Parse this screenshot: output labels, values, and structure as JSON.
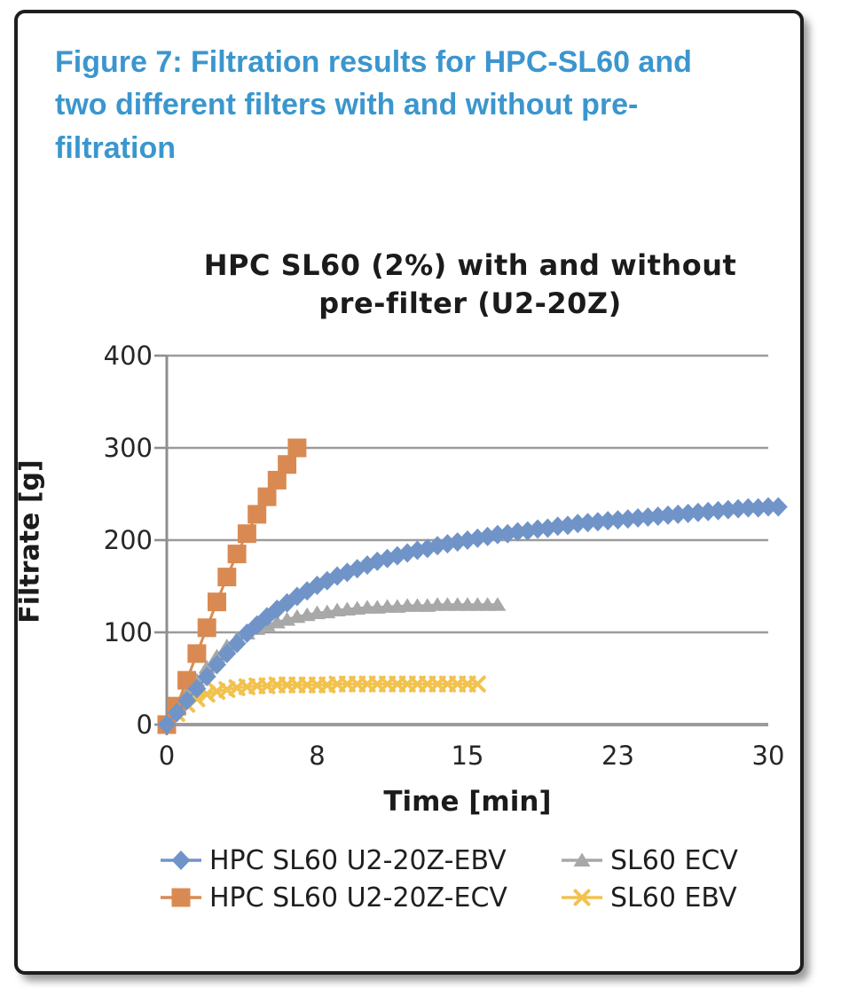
{
  "figure_caption": "Figure 7: Filtration results for HPC-SL60 and two different filters with and without pre-filtration",
  "colors": {
    "caption_blue": "#3b96ce",
    "grid_gray": "#9b9b9b",
    "axis_gray": "#8f8f8f",
    "text_dark": "#1b1b1b"
  },
  "chart_data": {
    "type": "scatter",
    "title": "HPC SL60 (2%) with and without pre-filter (U2-20Z)",
    "xlabel": "Time [min]",
    "ylabel": "Filtrate [g]",
    "xlim": [
      0,
      30
    ],
    "ylim": [
      0,
      400
    ],
    "xticks": {
      "positions": [
        0,
        7.5,
        15,
        22.5,
        30
      ],
      "labels": [
        "0",
        "8",
        "15",
        "23",
        "30"
      ]
    },
    "yticks": {
      "positions": [
        0,
        100,
        200,
        300,
        400
      ],
      "labels": [
        "0",
        "100",
        "200",
        "300",
        "400"
      ]
    },
    "grid": "horizontal",
    "legend_position": "bottom-two-columns",
    "series": [
      {
        "name": "HPC SL60 U2-20Z-EBV",
        "marker": "diamond",
        "color": "#7094c8",
        "points": [
          [
            0,
            0
          ],
          [
            0.5,
            13
          ],
          [
            1,
            26
          ],
          [
            1.5,
            39
          ],
          [
            2,
            52
          ],
          [
            2.5,
            65
          ],
          [
            3,
            77
          ],
          [
            3.5,
            88
          ],
          [
            4,
            99
          ],
          [
            4.5,
            108
          ],
          [
            5,
            117
          ],
          [
            5.5,
            125
          ],
          [
            6,
            132
          ],
          [
            6.5,
            139
          ],
          [
            7,
            145
          ],
          [
            7.5,
            151
          ],
          [
            8,
            156
          ],
          [
            8.5,
            161
          ],
          [
            9,
            165
          ],
          [
            9.5,
            169
          ],
          [
            10,
            173
          ],
          [
            10.5,
            177
          ],
          [
            11,
            180
          ],
          [
            11.5,
            183
          ],
          [
            12,
            186
          ],
          [
            12.5,
            189
          ],
          [
            13,
            191
          ],
          [
            13.5,
            194
          ],
          [
            14,
            196
          ],
          [
            14.5,
            198
          ],
          [
            15,
            200
          ],
          [
            15.5,
            202
          ],
          [
            16,
            204
          ],
          [
            16.5,
            206
          ],
          [
            17,
            207
          ],
          [
            17.5,
            209
          ],
          [
            18,
            210
          ],
          [
            18.5,
            212
          ],
          [
            19,
            213
          ],
          [
            19.5,
            215
          ],
          [
            20,
            216
          ],
          [
            20.5,
            218
          ],
          [
            21,
            219
          ],
          [
            21.5,
            220
          ],
          [
            22,
            221
          ],
          [
            22.5,
            222
          ],
          [
            23,
            223
          ],
          [
            23.5,
            224
          ],
          [
            24,
            225
          ],
          [
            24.5,
            226
          ],
          [
            25,
            227
          ],
          [
            25.5,
            228
          ],
          [
            26,
            229
          ],
          [
            26.5,
            230
          ],
          [
            27,
            231
          ],
          [
            27.5,
            232
          ],
          [
            28,
            233
          ],
          [
            28.5,
            234
          ],
          [
            29,
            235
          ],
          [
            29.5,
            235
          ],
          [
            30,
            236
          ],
          [
            30.5,
            236
          ]
        ]
      },
      {
        "name": "HPC SL60 U2-20Z-ECV",
        "marker": "square",
        "color": "#d98a52",
        "points": [
          [
            0,
            0
          ],
          [
            0.5,
            20
          ],
          [
            1,
            48
          ],
          [
            1.5,
            77
          ],
          [
            2,
            105
          ],
          [
            2.5,
            133
          ],
          [
            3,
            160
          ],
          [
            3.5,
            185
          ],
          [
            4,
            207
          ],
          [
            4.5,
            228
          ],
          [
            5,
            247
          ],
          [
            5.5,
            265
          ],
          [
            6,
            282
          ],
          [
            6.5,
            300
          ]
        ]
      },
      {
        "name": "SL60 ECV",
        "marker": "triangle",
        "color": "#a8a8a8",
        "points": [
          [
            0,
            0
          ],
          [
            0.5,
            17
          ],
          [
            1,
            33
          ],
          [
            1.5,
            48
          ],
          [
            2,
            62
          ],
          [
            2.5,
            74
          ],
          [
            3,
            85
          ],
          [
            3.5,
            93
          ],
          [
            4,
            99
          ],
          [
            4.5,
            104
          ],
          [
            5,
            108
          ],
          [
            5.5,
            111
          ],
          [
            6,
            114
          ],
          [
            6.5,
            117
          ],
          [
            7,
            119
          ],
          [
            7.5,
            121
          ],
          [
            8,
            122
          ],
          [
            8.5,
            124
          ],
          [
            9,
            125
          ],
          [
            9.5,
            126
          ],
          [
            10,
            127
          ],
          [
            10.5,
            127
          ],
          [
            11,
            128
          ],
          [
            11.5,
            128
          ],
          [
            12,
            129
          ],
          [
            12.5,
            129
          ],
          [
            13,
            129
          ],
          [
            13.5,
            130
          ],
          [
            14,
            130
          ],
          [
            14.5,
            130
          ],
          [
            15,
            130
          ],
          [
            15.5,
            130
          ],
          [
            16,
            130
          ],
          [
            16.5,
            130
          ]
        ]
      },
      {
        "name": "SL60 EBV",
        "marker": "x",
        "color": "#f2c24e",
        "points": [
          [
            0,
            0
          ],
          [
            0.5,
            12
          ],
          [
            1,
            22
          ],
          [
            1.5,
            28
          ],
          [
            2,
            33
          ],
          [
            2.5,
            36
          ],
          [
            3,
            38
          ],
          [
            3.5,
            40
          ],
          [
            4,
            41
          ],
          [
            4.5,
            42
          ],
          [
            5,
            42
          ],
          [
            5.5,
            43
          ],
          [
            6,
            43
          ],
          [
            6.5,
            43
          ],
          [
            7,
            43
          ],
          [
            7.5,
            43
          ],
          [
            8,
            43
          ],
          [
            8.5,
            44
          ],
          [
            9,
            44
          ],
          [
            9.5,
            44
          ],
          [
            10,
            44
          ],
          [
            10.5,
            44
          ],
          [
            11,
            44
          ],
          [
            11.5,
            44
          ],
          [
            12,
            44
          ],
          [
            12.5,
            44
          ],
          [
            13,
            44
          ],
          [
            13.5,
            44
          ],
          [
            14,
            44
          ],
          [
            14.5,
            44
          ],
          [
            15,
            44
          ],
          [
            15.5,
            44
          ]
        ]
      }
    ]
  }
}
